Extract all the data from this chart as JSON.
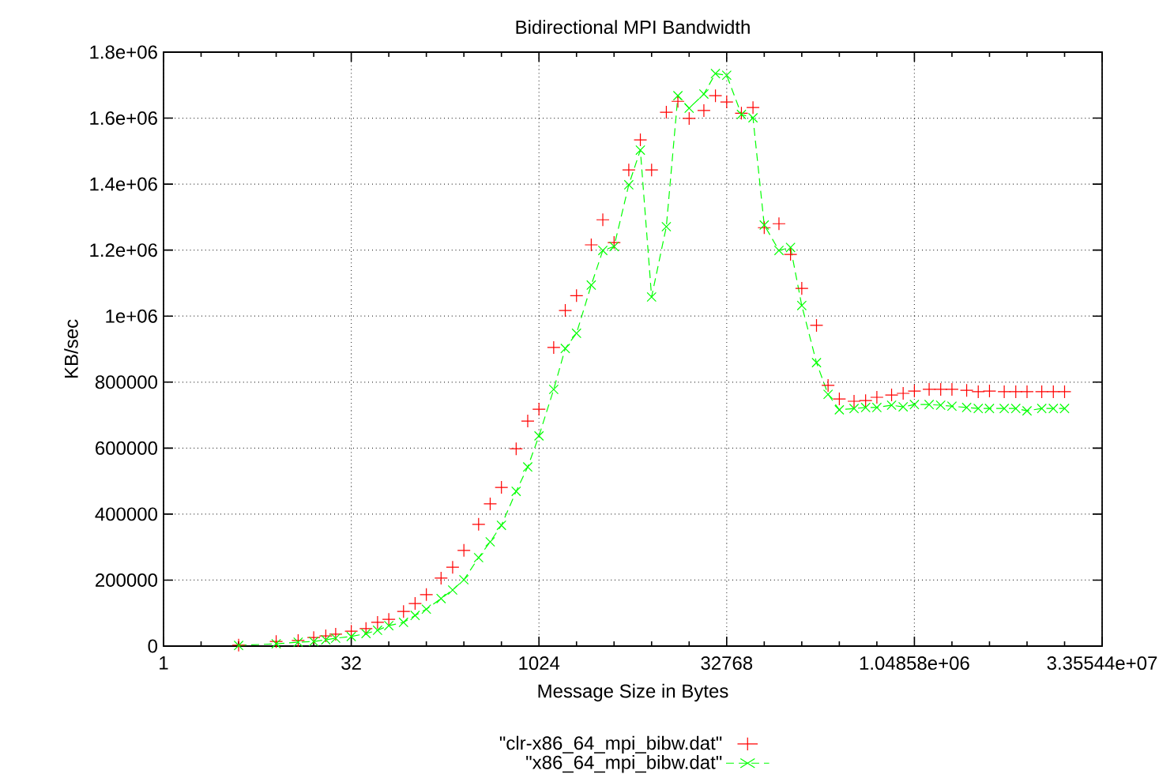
{
  "chart_data": {
    "type": "line",
    "title": "Bidirectional MPI Bandwidth",
    "xlabel": "Message Size in Bytes",
    "ylabel": "KB/sec",
    "log": "x",
    "grid": true,
    "legend": "bottom",
    "xlim": [
      1,
      33554432
    ],
    "ylim": [
      0,
      1800000
    ],
    "xticks": [
      1,
      {
        "value": 2,
        "label": null
      },
      {
        "value": 4,
        "label": null
      },
      {
        "value": 8,
        "label": null
      },
      {
        "value": 16,
        "label": null
      },
      32,
      {
        "value": 64,
        "label": null
      },
      {
        "value": 128,
        "label": null
      },
      {
        "value": 256,
        "label": null
      },
      {
        "value": 512,
        "label": null
      },
      1024,
      {
        "value": 2048,
        "label": null
      },
      {
        "value": 4096,
        "label": null
      },
      {
        "value": 8192,
        "label": null
      },
      {
        "value": 16384,
        "label": null
      },
      32768,
      {
        "value": 65536,
        "label": null
      },
      {
        "value": 131072,
        "label": null
      },
      {
        "value": 262144,
        "label": null
      },
      {
        "value": 524288,
        "label": null
      },
      {
        "value": 1048576,
        "label": "1.04858e+06"
      },
      {
        "value": 2097152,
        "label": null
      },
      {
        "value": 4194304,
        "label": null
      },
      {
        "value": 8388608,
        "label": null
      },
      {
        "value": 16777216,
        "label": null
      },
      {
        "value": 33554432,
        "label": "3.35544e+07"
      }
    ],
    "yticks": [
      0,
      200000,
      400000,
      600000,
      800000,
      {
        "value": 1000000,
        "label": "1e+06"
      },
      {
        "value": 1200000,
        "label": "1.2e+06"
      },
      {
        "value": 1400000,
        "label": "1.4e+06"
      },
      {
        "value": 1600000,
        "label": "1.6e+06"
      },
      {
        "value": 1800000,
        "label": "1.8e+06"
      }
    ],
    "x": [
      4,
      8,
      12,
      16,
      20,
      24,
      32,
      42,
      52,
      64,
      84,
      104,
      128,
      168,
      208,
      256,
      336,
      416,
      512,
      672,
      832,
      1024,
      1344,
      1664,
      2048,
      2688,
      3328,
      4096,
      5376,
      6656,
      8192,
      10752,
      13312,
      16384,
      21504,
      26624,
      32768,
      43008,
      53248,
      65536,
      86016,
      106496,
      131072,
      172032,
      212992,
      262144,
      344064,
      425984,
      524288,
      688128,
      851968,
      1048576,
      1376256,
      1703936,
      2097152,
      2752512,
      3407872,
      4194304,
      5505024,
      6815744,
      8388608,
      11010048,
      13631488,
      16777216
    ],
    "series": [
      {
        "name": "\"clr-x86_64_mpi_bibw.dat\"",
        "type": "scatter",
        "marker": "cross",
        "color": "#ff0000",
        "values": [
          3000,
          14000,
          17000,
          26000,
          31000,
          36000,
          45000,
          53000,
          72000,
          81000,
          105000,
          129000,
          156000,
          206000,
          239000,
          290000,
          369000,
          431000,
          481000,
          598000,
          682000,
          718000,
          905000,
          1017000,
          1062000,
          1216000,
          1292000,
          1223000,
          1443000,
          1534000,
          1443000,
          1618000,
          1651000,
          1599000,
          1623000,
          1668000,
          1649000,
          1615000,
          1632000,
          1268000,
          1280000,
          1187000,
          1084000,
          972000,
          790000,
          749000,
          742000,
          744000,
          754000,
          761000,
          766000,
          773000,
          778000,
          778000,
          778000,
          775000,
          771000,
          773000,
          771000,
          771000,
          771000,
          771000,
          771000,
          771000
        ]
      },
      {
        "name": "\"x86_64_mpi_bibw.dat\"",
        "marker": "cross",
        "line_style": "dashed",
        "color": "#00ff00",
        "values": [
          2000,
          7000,
          12000,
          14000,
          19000,
          24000,
          29000,
          38000,
          48000,
          62000,
          72000,
          93000,
          112000,
          144000,
          170000,
          201000,
          268000,
          316000,
          366000,
          469000,
          543000,
          637000,
          778000,
          902000,
          948000,
          1094000,
          1199000,
          1211000,
          1398000,
          1503000,
          1058000,
          1271000,
          1668000,
          1630000,
          1673000,
          1735000,
          1730000,
          1611000,
          1601000,
          1276000,
          1199000,
          1208000,
          1032000,
          859000,
          763000,
          716000,
          720000,
          723000,
          723000,
          730000,
          725000,
          732000,
          732000,
          730000,
          727000,
          723000,
          720000,
          720000,
          720000,
          720000,
          713000,
          720000,
          720000,
          720000
        ]
      }
    ]
  }
}
